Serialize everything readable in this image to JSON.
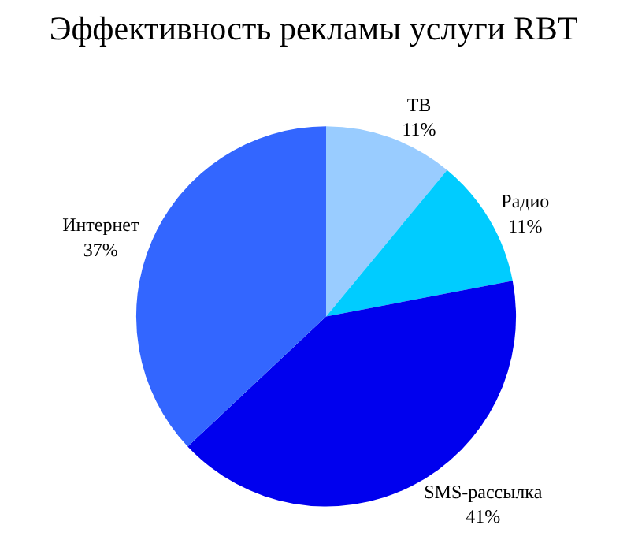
{
  "chart_data": {
    "type": "pie",
    "title": "Эффективность рекламы услуги RBT",
    "categories": [
      "ТВ",
      "Радио",
      "SMS-рассылка",
      "Интернет"
    ],
    "values": [
      11,
      11,
      41,
      37
    ],
    "value_labels": [
      "11%",
      "11%",
      "41%",
      "37%"
    ],
    "colors": [
      "#99ccff",
      "#00ccff",
      "#0000ee",
      "#3366ff"
    ],
    "legend": false
  }
}
